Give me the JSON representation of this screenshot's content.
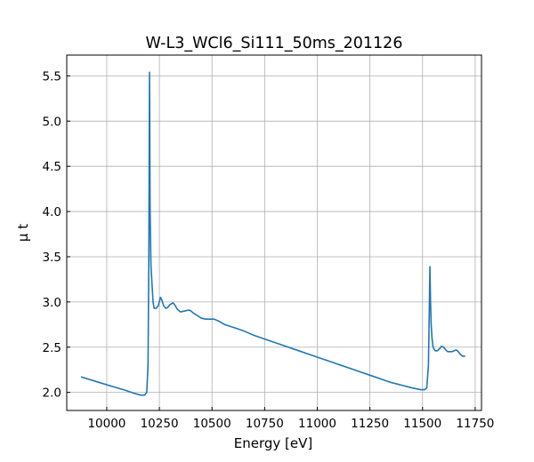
{
  "chart_data": {
    "type": "line",
    "title": "W-L3_WCl6_Si111_50ms_201126",
    "xlabel": "Energy [eV]",
    "ylabel": "μ t",
    "xlim": [
      9810,
      11780
    ],
    "ylim": [
      1.8,
      5.73
    ],
    "grid": true,
    "xticks": [
      10000,
      10250,
      10500,
      10750,
      11000,
      11250,
      11500,
      11750
    ],
    "xtick_labels": [
      "10000",
      "10250",
      "10500",
      "10750",
      "11000",
      "11250",
      "11500",
      "11750"
    ],
    "yticks": [
      2.0,
      2.5,
      3.0,
      3.5,
      4.0,
      4.5,
      5.0,
      5.5
    ],
    "ytick_labels": [
      "2.0",
      "2.5",
      "3.0",
      "3.5",
      "4.0",
      "4.5",
      "5.0",
      "5.5"
    ],
    "series": [
      {
        "color": "#1f77b4",
        "x": [
          9880,
          9950,
          10020,
          10080,
          10130,
          10160,
          10180,
          10190,
          10196,
          10200,
          10203,
          10206,
          10210,
          10215,
          10220,
          10225,
          10235,
          10245,
          10255,
          10262,
          10270,
          10280,
          10290,
          10300,
          10315,
          10325,
          10335,
          10350,
          10370,
          10390,
          10400,
          10410,
          10430,
          10450,
          10470,
          10490,
          10510,
          10530,
          10560,
          10600,
          10650,
          10700,
          10750,
          10800,
          10850,
          10900,
          10950,
          11000,
          11050,
          11100,
          11150,
          11200,
          11250,
          11300,
          11350,
          11400,
          11450,
          11490,
          11510,
          11520,
          11528,
          11532,
          11535,
          11538,
          11541,
          11545,
          11550,
          11560,
          11570,
          11580,
          11590,
          11600,
          11610,
          11620,
          11630,
          11640,
          11650,
          11660,
          11670,
          11680,
          11690,
          11700
        ],
        "y": [
          2.17,
          2.12,
          2.07,
          2.03,
          1.99,
          1.97,
          1.97,
          2.0,
          2.3,
          3.5,
          5.54,
          4.0,
          3.4,
          3.2,
          3.0,
          2.93,
          2.93,
          2.96,
          3.05,
          3.02,
          2.96,
          2.93,
          2.94,
          2.97,
          2.99,
          2.96,
          2.92,
          2.89,
          2.9,
          2.91,
          2.9,
          2.88,
          2.85,
          2.82,
          2.81,
          2.81,
          2.81,
          2.79,
          2.75,
          2.72,
          2.68,
          2.63,
          2.59,
          2.55,
          2.51,
          2.47,
          2.43,
          2.39,
          2.35,
          2.31,
          2.27,
          2.23,
          2.19,
          2.15,
          2.11,
          2.08,
          2.05,
          2.03,
          2.03,
          2.05,
          2.3,
          2.9,
          3.39,
          3.0,
          2.75,
          2.6,
          2.5,
          2.46,
          2.46,
          2.48,
          2.51,
          2.5,
          2.47,
          2.45,
          2.45,
          2.45,
          2.46,
          2.47,
          2.45,
          2.42,
          2.4,
          2.4
        ]
      }
    ]
  }
}
